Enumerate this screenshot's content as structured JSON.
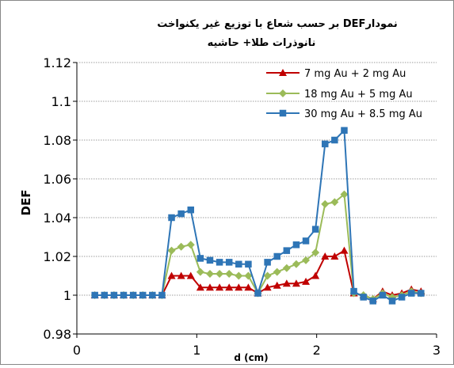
{
  "chart_data": {
    "type": "line",
    "title_line1": "بر حسب شعاع با توزیع غیر یکنواخت DEFنمودار",
    "title_line2": "نانوذرات طلا+ حاشیه",
    "xlabel": "d (cm)",
    "ylabel": "DEF",
    "xlim": [
      0,
      3
    ],
    "ylim": [
      0.98,
      1.12
    ],
    "xticks": [
      0,
      1,
      2,
      3
    ],
    "yticks": [
      0.98,
      1,
      1.02,
      1.04,
      1.06,
      1.08,
      1.1,
      1.12
    ],
    "ytick_labels": [
      "0.98",
      "1",
      "1.02",
      "1.04",
      "1.06",
      "1.08",
      "1.1",
      "1.12"
    ],
    "xtick_labels": [
      "0",
      "1",
      "2",
      "3"
    ],
    "grid": "horizontal",
    "legend_position": "top-right",
    "x": [
      0.15,
      0.23,
      0.31,
      0.39,
      0.47,
      0.55,
      0.63,
      0.71,
      0.79,
      0.87,
      0.95,
      1.03,
      1.11,
      1.19,
      1.27,
      1.35,
      1.43,
      1.51,
      1.59,
      1.67,
      1.75,
      1.83,
      1.91,
      1.99,
      2.07,
      2.15,
      2.23,
      2.31,
      2.39,
      2.47,
      2.55,
      2.63,
      2.71,
      2.79,
      2.87
    ],
    "series": [
      {
        "name": "7 mg Au + 2 mg  Au",
        "color": "#c00000",
        "marker": "triangle",
        "values": [
          1.0,
          1.0,
          1.0,
          1.0,
          1.0,
          1.0,
          1.0,
          1.0,
          1.01,
          1.01,
          1.01,
          1.004,
          1.004,
          1.004,
          1.004,
          1.004,
          1.004,
          1.001,
          1.004,
          1.005,
          1.006,
          1.006,
          1.007,
          1.01,
          1.02,
          1.02,
          1.023,
          1.001,
          1.0,
          0.998,
          1.002,
          1.0,
          1.001,
          1.003,
          1.002
        ]
      },
      {
        "name": "18 mg  Au + 5 mg  Au",
        "color": "#9bbb59",
        "marker": "diamond",
        "values": [
          1.0,
          1.0,
          1.0,
          1.0,
          1.0,
          1.0,
          1.0,
          1.0,
          1.023,
          1.025,
          1.026,
          1.012,
          1.011,
          1.011,
          1.011,
          1.01,
          1.01,
          1.001,
          1.01,
          1.012,
          1.014,
          1.016,
          1.018,
          1.022,
          1.047,
          1.048,
          1.052,
          1.001,
          1.0,
          0.998,
          1.001,
          0.999,
          1.0,
          1.002,
          1.001
        ]
      },
      {
        "name": "30 mg  Au + 8.5 mg  Au",
        "color": "#2e75b6",
        "marker": "square",
        "values": [
          1.0,
          1.0,
          1.0,
          1.0,
          1.0,
          1.0,
          1.0,
          1.0,
          1.04,
          1.042,
          1.044,
          1.019,
          1.018,
          1.017,
          1.017,
          1.016,
          1.016,
          1.001,
          1.017,
          1.02,
          1.023,
          1.026,
          1.028,
          1.034,
          1.078,
          1.08,
          1.085,
          1.002,
          0.999,
          0.997,
          1.0,
          0.997,
          0.999,
          1.001,
          1.001
        ]
      }
    ]
  }
}
